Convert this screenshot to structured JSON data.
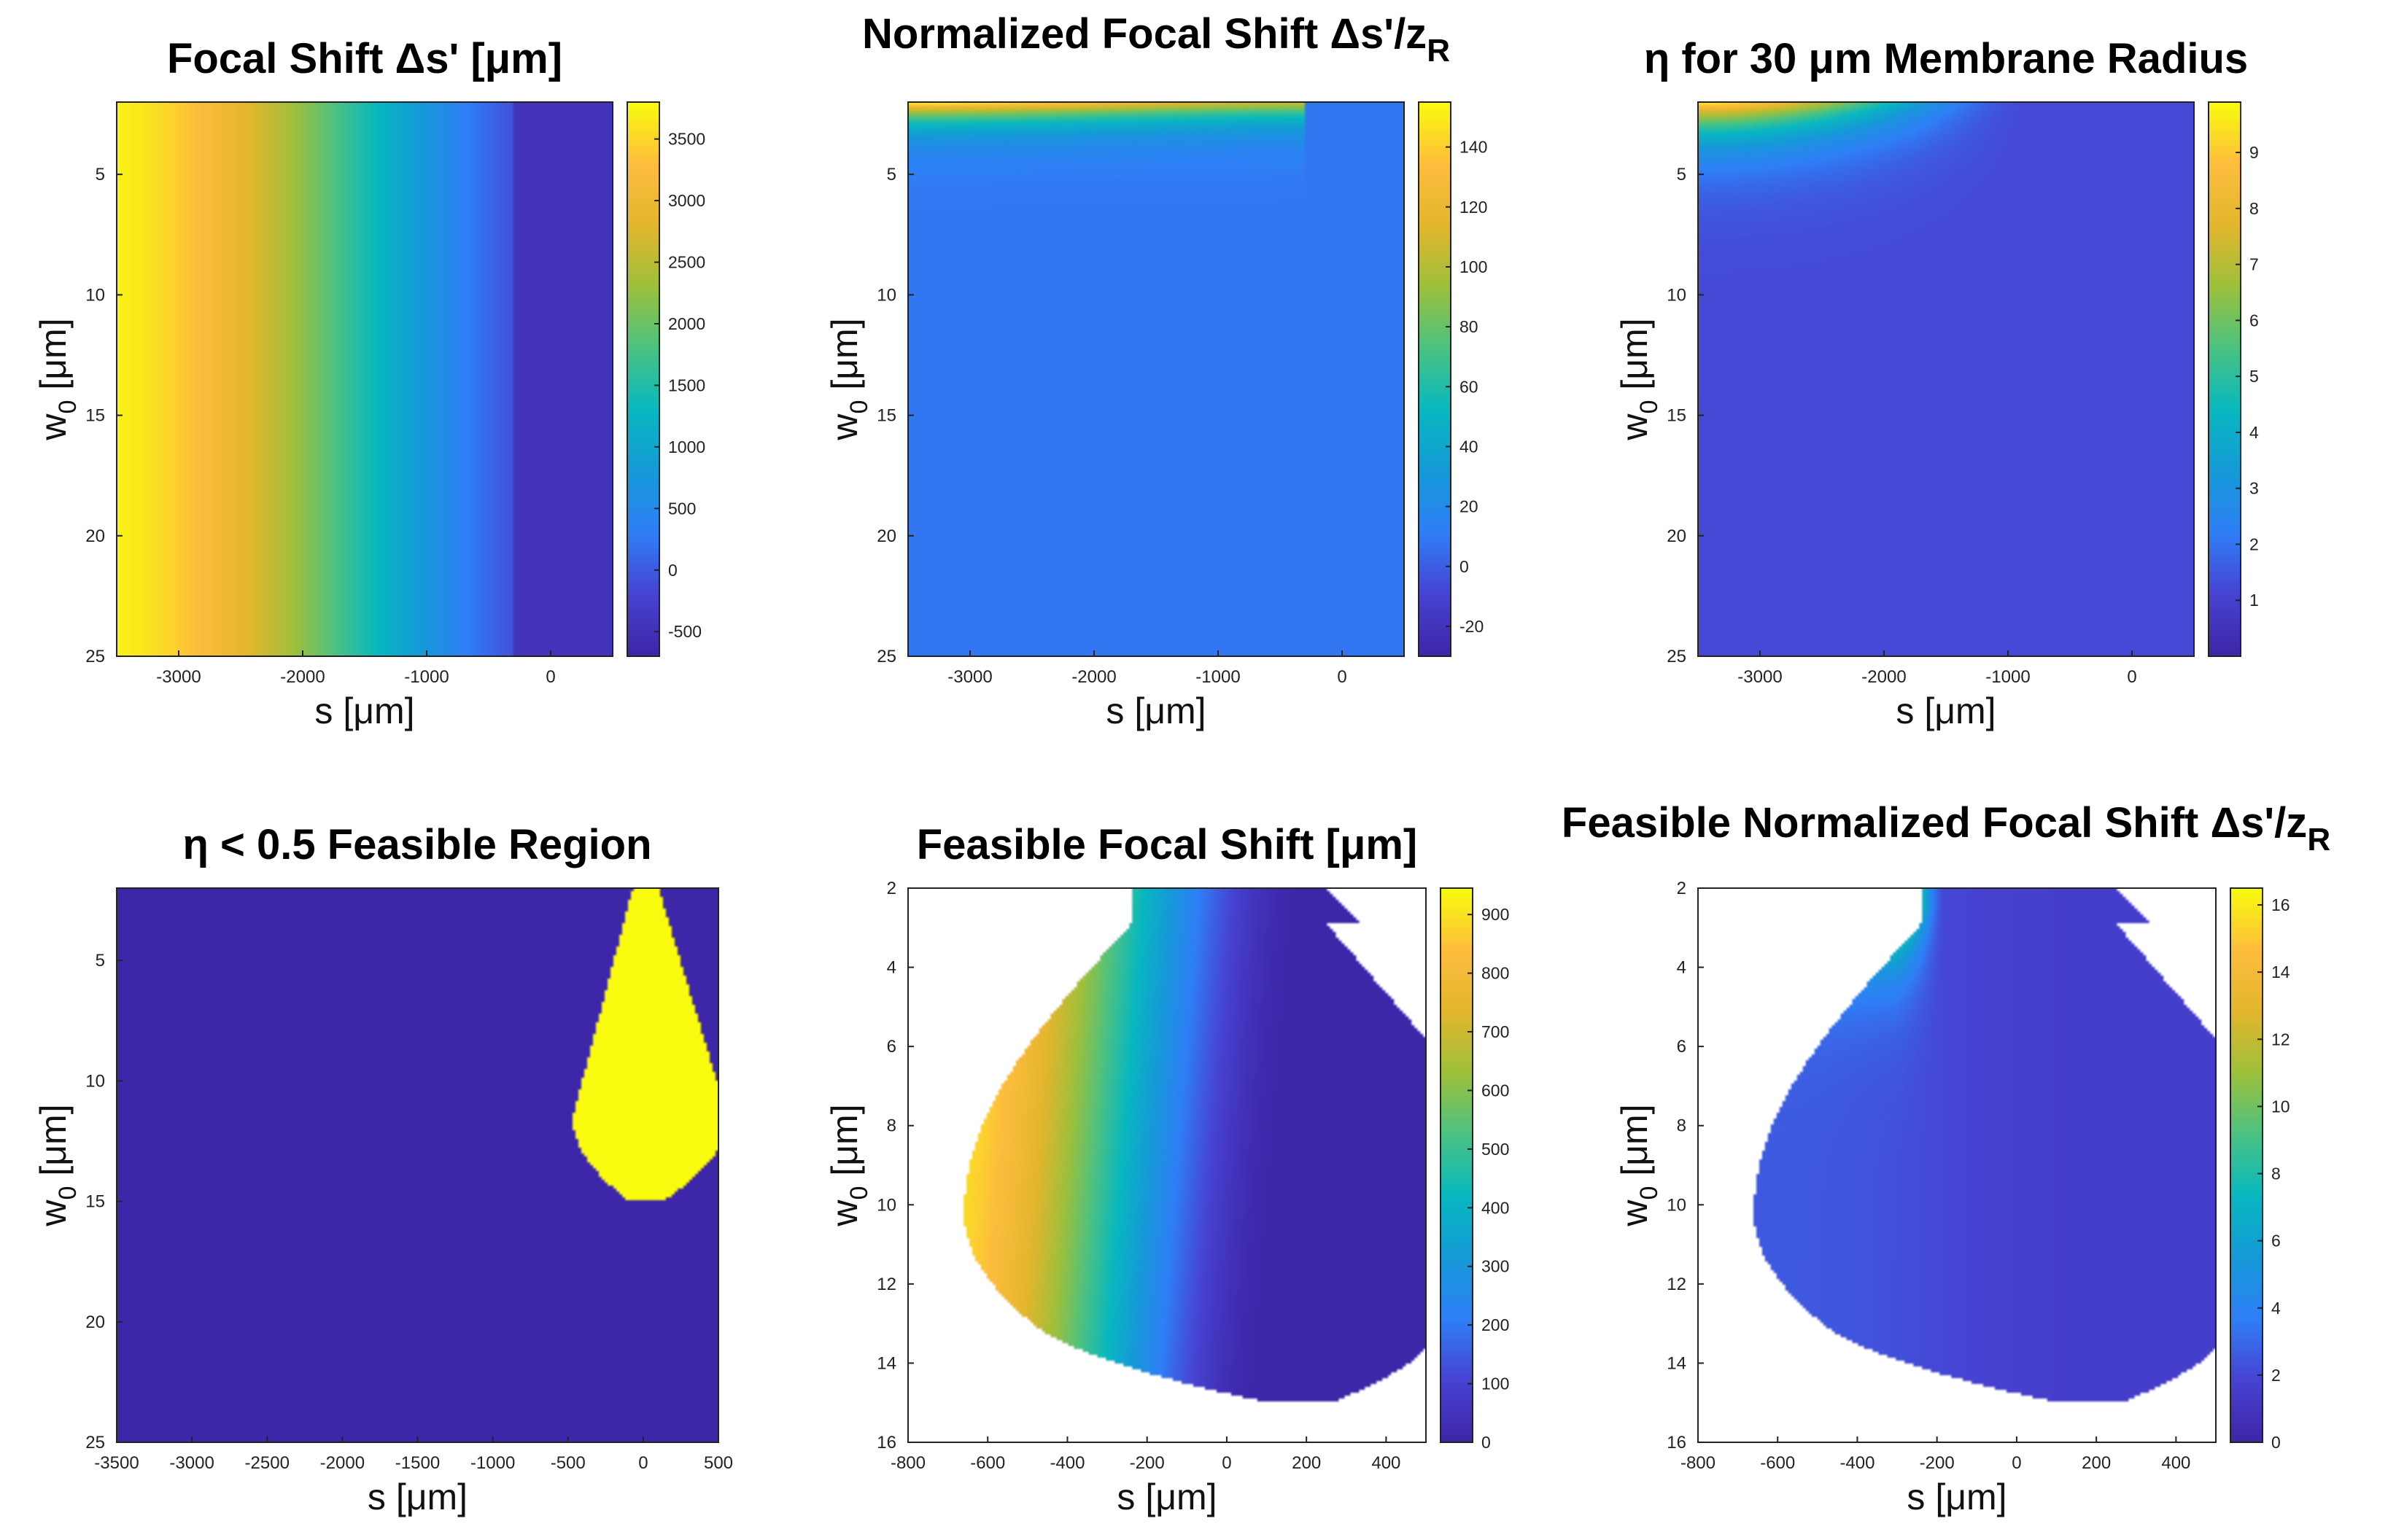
{
  "figure": {
    "title": ""
  },
  "colormap": {
    "name": "parula",
    "stops": [
      "#3e26a8",
      "#4743d2",
      "#2f7ff7",
      "#159ad7",
      "#08b8c0",
      "#4ac283",
      "#9dc03c",
      "#e3b62d",
      "#fdbd3d",
      "#f9fb0e"
    ]
  },
  "chart_data": [
    {
      "id": "p1",
      "type": "heatmap",
      "title": "Focal Shift Δs' [μm]",
      "xlabel": "s [μm]",
      "ylabel": "w0 [μm]",
      "ylabel_text": "w",
      "ylabel_sub": "0",
      "ylabel_unit": " [μm]",
      "xlim": [
        -3500,
        500
      ],
      "ylim": [
        2,
        25
      ],
      "xticks": [
        -3000,
        -2000,
        -1000,
        0
      ],
      "xtick_labels": [
        "-3000",
        "-2000",
        "-1000",
        "0"
      ],
      "yticks": [
        5,
        10,
        15,
        20,
        25
      ],
      "ytick_labels": [
        "5",
        "10",
        "15",
        "20",
        "25"
      ],
      "colorbar": {
        "range": [
          -700,
          3800
        ],
        "ticks": [
          -500,
          0,
          500,
          1000,
          1500,
          2000,
          2500,
          3000,
          3500
        ],
        "tick_labels": [
          "-500",
          "0",
          "500",
          "1000",
          "1500",
          "2000",
          "2500",
          "3000",
          "3500"
        ]
      },
      "model": "focal"
    },
    {
      "id": "p2",
      "type": "heatmap",
      "title": "Normalized Focal Shift Δs'/z",
      "title_sub": "R",
      "xlabel": "s [μm]",
      "ylabel": "w0 [μm]",
      "ylabel_text": "w",
      "ylabel_sub": "0",
      "ylabel_unit": " [μm]",
      "xlim": [
        -3500,
        500
      ],
      "ylim": [
        2,
        25
      ],
      "xticks": [
        -3000,
        -2000,
        -1000,
        0
      ],
      "xtick_labels": [
        "-3000",
        "-2000",
        "-1000",
        "0"
      ],
      "yticks": [
        5,
        10,
        15,
        20,
        25
      ],
      "ytick_labels": [
        "5",
        "10",
        "15",
        "20",
        "25"
      ],
      "colorbar": {
        "range": [
          -30,
          155
        ],
        "ticks": [
          -20,
          0,
          20,
          40,
          60,
          80,
          100,
          120,
          140
        ],
        "tick_labels": [
          "-20",
          "0",
          "20",
          "40",
          "60",
          "80",
          "100",
          "120",
          "140"
        ]
      },
      "model": "normalized"
    },
    {
      "id": "p3",
      "type": "heatmap",
      "title": "η for 30 μm Membrane Radius",
      "xlabel": "s [μm]",
      "ylabel": "w0 [μm]",
      "ylabel_text": "w",
      "ylabel_sub": "0",
      "ylabel_unit": " [μm]",
      "xlim": [
        -3500,
        500
      ],
      "ylim": [
        2,
        25
      ],
      "xticks": [
        -3000,
        -2000,
        -1000,
        0
      ],
      "xtick_labels": [
        "-3000",
        "-2000",
        "-1000",
        "0"
      ],
      "yticks": [
        5,
        10,
        15,
        20,
        25
      ],
      "ytick_labels": [
        "5",
        "10",
        "15",
        "20",
        "25"
      ],
      "colorbar": {
        "range": [
          0,
          9.9
        ],
        "ticks": [
          1,
          2,
          3,
          4,
          5,
          6,
          7,
          8,
          9
        ],
        "tick_labels": [
          "1",
          "2",
          "3",
          "4",
          "5",
          "6",
          "7",
          "8",
          "9"
        ]
      },
      "model": "eta"
    },
    {
      "id": "p4",
      "type": "heatmap",
      "title": "η < 0.5 Feasible Region",
      "xlabel": "s [μm]",
      "ylabel": "w0 [μm]",
      "ylabel_text": "w",
      "ylabel_sub": "0",
      "ylabel_unit": " [μm]",
      "xlim": [
        -3500,
        500
      ],
      "ylim": [
        2,
        25
      ],
      "xticks": [
        -3500,
        -3000,
        -2500,
        -2000,
        -1500,
        -1000,
        -500,
        0,
        500
      ],
      "xtick_labels": [
        "-3500",
        "-3000",
        "-2500",
        "-2000",
        "-1500",
        "-1000",
        "-500",
        "0",
        "500"
      ],
      "yticks": [
        5,
        10,
        15,
        20,
        25
      ],
      "ytick_labels": [
        "5",
        "10",
        "15",
        "20",
        "25"
      ],
      "colorbar": null,
      "model": "binary"
    },
    {
      "id": "p5",
      "type": "heatmap",
      "title": "Feasible Focal Shift [μm]",
      "xlabel": "s [μm]",
      "ylabel": "w0 [μm]",
      "ylabel_text": "w",
      "ylabel_sub": "0",
      "ylabel_unit": " [μm]",
      "xlim": [
        -800,
        500
      ],
      "ylim": [
        2,
        16
      ],
      "xticks": [
        -800,
        -600,
        -400,
        -200,
        0,
        200,
        400
      ],
      "xtick_labels": [
        "-800",
        "-600",
        "-400",
        "-200",
        "0",
        "200",
        "400"
      ],
      "yticks": [
        2,
        4,
        6,
        8,
        10,
        12,
        14,
        16
      ],
      "ytick_labels": [
        "2",
        "4",
        "6",
        "8",
        "10",
        "12",
        "14",
        "16"
      ],
      "colorbar": {
        "range": [
          0,
          945
        ],
        "ticks": [
          0,
          100,
          200,
          300,
          400,
          500,
          600,
          700,
          800,
          900
        ],
        "tick_labels": [
          "0",
          "100",
          "200",
          "300",
          "400",
          "500",
          "600",
          "700",
          "800",
          "900"
        ]
      },
      "model": "feasfocal"
    },
    {
      "id": "p6",
      "type": "heatmap",
      "title": "Feasible Normalized Focal Shift Δs'/z",
      "title_sub": "R",
      "xlabel": "s [μm]",
      "ylabel": "w0 [μm]",
      "ylabel_text": "w",
      "ylabel_sub": "0",
      "ylabel_unit": " [μm]",
      "xlim": [
        -800,
        500
      ],
      "ylim": [
        2,
        16
      ],
      "xticks": [
        -800,
        -600,
        -400,
        -200,
        0,
        200,
        400
      ],
      "xtick_labels": [
        "-800",
        "-600",
        "-400",
        "-200",
        "0",
        "200",
        "400"
      ],
      "yticks": [
        2,
        4,
        6,
        8,
        10,
        12,
        14,
        16
      ],
      "ytick_labels": [
        "2",
        "4",
        "6",
        "8",
        "10",
        "12",
        "14",
        "16"
      ],
      "colorbar": {
        "range": [
          0,
          16.5
        ],
        "ticks": [
          0,
          2,
          4,
          6,
          8,
          10,
          12,
          14,
          16
        ],
        "tick_labels": [
          "0",
          "2",
          "4",
          "6",
          "8",
          "10",
          "12",
          "14",
          "16"
        ]
      },
      "model": "feasnorm"
    }
  ]
}
